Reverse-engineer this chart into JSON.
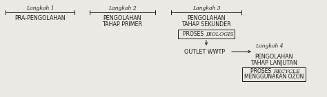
{
  "bg_color": "#ece9e4",
  "text_color": "#1a1a1a",
  "box_color": "#ece9e4",
  "box_edge_color": "#1a1a1a",
  "arrow_color": "#1a1a1a",
  "langkah1_label": "Langkah 1",
  "langkah1_main1": "PRA-PENGOLAHAN",
  "langkah2_label": "Langkah 2",
  "langkah2_main1": "PENGOLAHAN",
  "langkah2_main2": "TAHAP PRIMER",
  "langkah3_label": "Langkah 3",
  "langkah3_main1": "PENGOLAHAN",
  "langkah3_main2": "TAHAP SEKUNDER",
  "langkah4_label": "Langkah 4",
  "langkah4_main1": "PENGOLAHAN",
  "langkah4_main2": "TAHAP LANJUTAN",
  "outlet_label": "OUTLET WWTP",
  "font_size_label": 5.5,
  "font_size_main": 5.8,
  "font_size_box": 5.5
}
